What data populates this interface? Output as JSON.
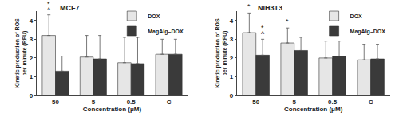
{
  "chart_data": [
    {
      "type": "bar",
      "title": "MCF7",
      "x_label": "Concentration (μM)",
      "y_label": [
        "Kinetic production of ROS",
        "per minute (RFU)"
      ],
      "categories": [
        "50",
        "5",
        "0.5",
        "C"
      ],
      "series": [
        {
          "name": "DOX",
          "color": "#e6e6e6",
          "values": [
            3.2,
            2.05,
            1.75,
            2.2
          ],
          "errors": [
            1.1,
            1.15,
            1.35,
            0.8
          ]
        },
        {
          "name": "MagAlg–DOX",
          "color": "#3a3a3a",
          "values": [
            1.3,
            1.95,
            1.7,
            2.2
          ],
          "errors": [
            0.8,
            1.25,
            1.4,
            0.8
          ]
        }
      ],
      "annotations": [
        {
          "text": "^",
          "category": "50",
          "series": "DOX"
        },
        {
          "text": "*",
          "category": "50",
          "series": "DOX"
        }
      ],
      "ylim": [
        0,
        4.5
      ],
      "yticks": [
        0,
        1,
        2,
        3,
        4
      ],
      "grid": false,
      "legend": "top right"
    },
    {
      "type": "bar",
      "title": "NIH3T3",
      "x_label": "Concentration (μM)",
      "y_label": [
        "Kinetic production of ROS",
        "per minute (RFU)"
      ],
      "categories": [
        "50",
        "5",
        "0.5",
        "C"
      ],
      "series": [
        {
          "name": "DOX",
          "color": "#e6e6e6",
          "values": [
            3.35,
            2.8,
            2.0,
            1.9
          ],
          "errors": [
            1.05,
            0.8,
            0.9,
            0.8
          ]
        },
        {
          "name": "MagAlg–DOX",
          "color": "#3a3a3a",
          "values": [
            2.15,
            2.4,
            2.1,
            1.95
          ],
          "errors": [
            0.85,
            0.7,
            0.8,
            0.75
          ]
        }
      ],
      "annotations": [
        {
          "text": "*",
          "category": "50",
          "series": "DOX"
        },
        {
          "text": "^",
          "category": "50",
          "series": "MagAlg–DOX"
        },
        {
          "text": "*",
          "category": "50",
          "series": "MagAlg–DOX"
        },
        {
          "text": "*",
          "category": "5",
          "series": "DOX"
        }
      ],
      "ylim": [
        0,
        4.5
      ],
      "yticks": [
        0,
        1,
        2,
        3,
        4
      ],
      "grid": false,
      "legend": "top right"
    }
  ]
}
